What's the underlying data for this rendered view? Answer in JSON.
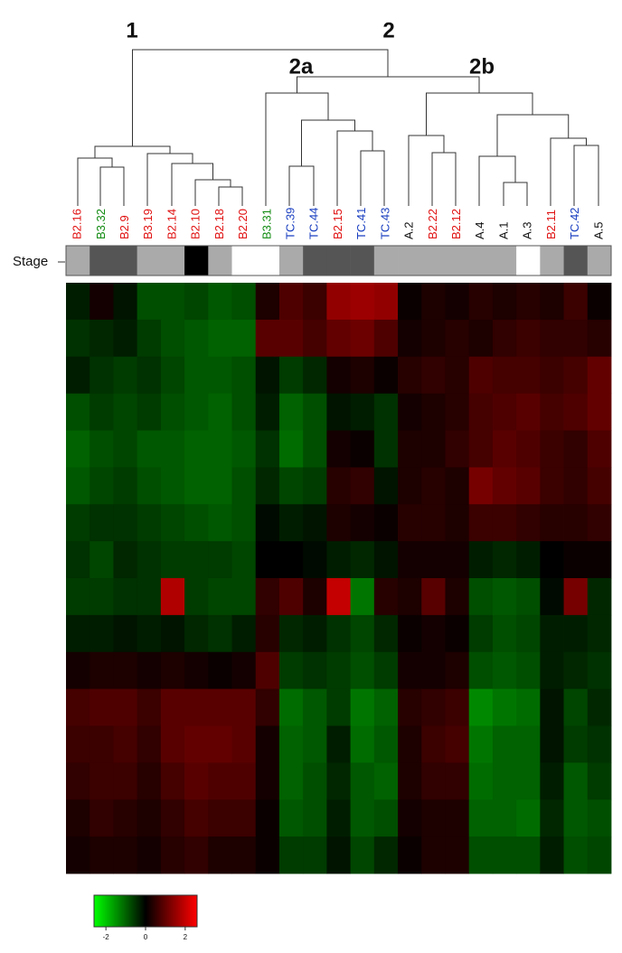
{
  "chart_data": {
    "type": "heatmap",
    "row_label": "Stage",
    "cluster_labels": [
      "1",
      "2",
      "2a",
      "2b"
    ],
    "categories": [
      "B2.16",
      "B3.32",
      "B2.9",
      "B3.19",
      "B2.14",
      "B2.10",
      "B2.18",
      "B2.20",
      "B3.31",
      "TC.39",
      "TC.44",
      "B2.15",
      "TC.41",
      "TC.43",
      "A.2",
      "B2.22",
      "B2.12",
      "A.4",
      "A.1",
      "A.3",
      "B2.11",
      "TC.42",
      "A.5"
    ],
    "label_colors": [
      "#e01010",
      "#108a10",
      "#e01010",
      "#e01010",
      "#e01010",
      "#e01010",
      "#e01010",
      "#e01010",
      "#108a10",
      "#1a3fc0",
      "#1a3fc0",
      "#e01010",
      "#1a3fc0",
      "#1a3fc0",
      "#111111",
      "#e01010",
      "#e01010",
      "#111111",
      "#111111",
      "#111111",
      "#e01010",
      "#1a3fc0",
      "#111111"
    ],
    "stage_colors": [
      "#aaaaaa",
      "#555555",
      "#555555",
      "#aaaaaa",
      "#aaaaaa",
      "#000000",
      "#aaaaaa",
      "#ffffff",
      "#ffffff",
      "#aaaaaa",
      "#555555",
      "#555555",
      "#555555",
      "#aaaaaa",
      "#aaaaaa",
      "#aaaaaa",
      "#aaaaaa",
      "#aaaaaa",
      "#aaaaaa",
      "#ffffff",
      "#aaaaaa",
      "#555555",
      "#aaaaaa"
    ],
    "values": [
      [
        -0.3,
        0.2,
        -0.2,
        -0.8,
        -0.8,
        -0.7,
        -0.9,
        -0.8,
        0.3,
        0.8,
        0.6,
        1.5,
        1.6,
        1.5,
        0.1,
        0.3,
        0.2,
        0.4,
        0.3,
        0.4,
        0.3,
        0.6,
        0.1
      ],
      [
        -0.5,
        -0.4,
        -0.3,
        -0.6,
        -0.8,
        -0.9,
        -1,
        -1,
        0.9,
        0.9,
        0.7,
        1.0,
        1.1,
        0.8,
        0.2,
        0.3,
        0.4,
        0.3,
        0.5,
        0.6,
        0.5,
        0.5,
        0.4
      ],
      [
        -0.3,
        -0.5,
        -0.6,
        -0.5,
        -0.7,
        -0.9,
        -0.9,
        -0.8,
        -0.2,
        -0.6,
        -0.4,
        0.2,
        0.3,
        0.1,
        0.4,
        0.5,
        0.4,
        0.8,
        0.7,
        0.7,
        0.6,
        0.7,
        1.0
      ],
      [
        -0.8,
        -0.6,
        -0.7,
        -0.6,
        -0.8,
        -0.9,
        -1.0,
        -0.8,
        -0.3,
        -1.0,
        -0.8,
        -0.2,
        -0.3,
        -0.5,
        0.2,
        0.3,
        0.4,
        0.7,
        0.8,
        0.9,
        0.7,
        0.8,
        1.0
      ],
      [
        -1.0,
        -0.8,
        -0.7,
        -0.9,
        -0.9,
        -1.0,
        -1.0,
        -0.9,
        -0.5,
        -1.1,
        -0.8,
        0.2,
        0.1,
        -0.5,
        0.3,
        0.3,
        0.5,
        0.7,
        0.9,
        0.8,
        0.6,
        0.5,
        0.8
      ],
      [
        -0.9,
        -0.7,
        -0.6,
        -0.8,
        -0.9,
        -1.0,
        -1.0,
        -0.8,
        -0.4,
        -0.7,
        -0.6,
        0.4,
        0.5,
        -0.2,
        0.3,
        0.4,
        0.3,
        1.2,
        1.0,
        0.9,
        0.6,
        0.5,
        0.7
      ],
      [
        -0.6,
        -0.5,
        -0.5,
        -0.6,
        -0.7,
        -0.8,
        -0.9,
        -0.8,
        -0.1,
        -0.3,
        -0.2,
        0.3,
        0.2,
        0.1,
        0.4,
        0.4,
        0.3,
        0.6,
        0.6,
        0.5,
        0.4,
        0.4,
        0.5
      ],
      [
        -0.5,
        -0.7,
        -0.4,
        -0.5,
        -0.6,
        -0.6,
        -0.6,
        -0.7,
        0.0,
        0.0,
        -0.1,
        -0.3,
        -0.4,
        -0.2,
        0.2,
        0.2,
        0.2,
        -0.3,
        -0.4,
        -0.3,
        0.0,
        0.1,
        0.1
      ],
      [
        -0.6,
        -0.6,
        -0.5,
        -0.5,
        1.8,
        -0.6,
        -0.7,
        -0.7,
        0.5,
        0.8,
        0.3,
        2.0,
        -1.2,
        0.4,
        0.3,
        0.9,
        0.3,
        -0.8,
        -0.9,
        -0.8,
        -0.1,
        1.2,
        -0.4
      ],
      [
        -0.3,
        -0.3,
        -0.2,
        -0.3,
        -0.2,
        -0.4,
        -0.5,
        -0.3,
        0.4,
        -0.4,
        -0.3,
        -0.5,
        -0.7,
        -0.4,
        0.1,
        0.2,
        0.1,
        -0.6,
        -0.8,
        -0.7,
        -0.3,
        -0.3,
        -0.4
      ],
      [
        0.2,
        0.3,
        0.3,
        0.2,
        0.3,
        0.2,
        0.1,
        0.2,
        0.8,
        -0.6,
        -0.5,
        -0.6,
        -0.8,
        -0.6,
        0.2,
        0.2,
        0.3,
        -0.8,
        -0.9,
        -0.8,
        -0.3,
        -0.4,
        -0.5
      ],
      [
        0.7,
        0.8,
        0.8,
        0.6,
        0.9,
        0.9,
        0.9,
        0.9,
        0.5,
        -1.1,
        -0.9,
        -0.6,
        -1.2,
        -1.0,
        0.4,
        0.5,
        0.6,
        -1.4,
        -1.2,
        -1.1,
        -0.2,
        -0.7,
        -0.4
      ],
      [
        0.6,
        0.6,
        0.7,
        0.5,
        0.9,
        1.0,
        1.0,
        0.9,
        0.2,
        -1.0,
        -0.9,
        -0.3,
        -1.1,
        -0.9,
        0.3,
        0.6,
        0.7,
        -1.2,
        -1.0,
        -1.0,
        -0.2,
        -0.6,
        -0.5
      ],
      [
        0.5,
        0.6,
        0.6,
        0.4,
        0.7,
        0.9,
        0.8,
        0.8,
        0.2,
        -1.0,
        -0.8,
        -0.4,
        -0.9,
        -1.0,
        0.3,
        0.5,
        0.5,
        -1.1,
        -1.0,
        -1.0,
        -0.3,
        -0.9,
        -0.6
      ],
      [
        0.3,
        0.5,
        0.4,
        0.3,
        0.5,
        0.7,
        0.6,
        0.6,
        0.1,
        -0.9,
        -0.8,
        -0.3,
        -0.9,
        -0.8,
        0.2,
        0.3,
        0.3,
        -1.0,
        -1.0,
        -1.1,
        -0.4,
        -0.9,
        -0.8
      ],
      [
        0.2,
        0.3,
        0.3,
        0.2,
        0.4,
        0.5,
        0.3,
        0.3,
        0.1,
        -0.6,
        -0.6,
        -0.2,
        -0.7,
        -0.4,
        0.1,
        0.3,
        0.3,
        -0.8,
        -0.8,
        -0.8,
        -0.3,
        -0.8,
        -0.7
      ]
    ],
    "colorbar": {
      "lim": [
        -2.6,
        2.6
      ],
      "ticks": [
        -2,
        0,
        2
      ]
    }
  }
}
